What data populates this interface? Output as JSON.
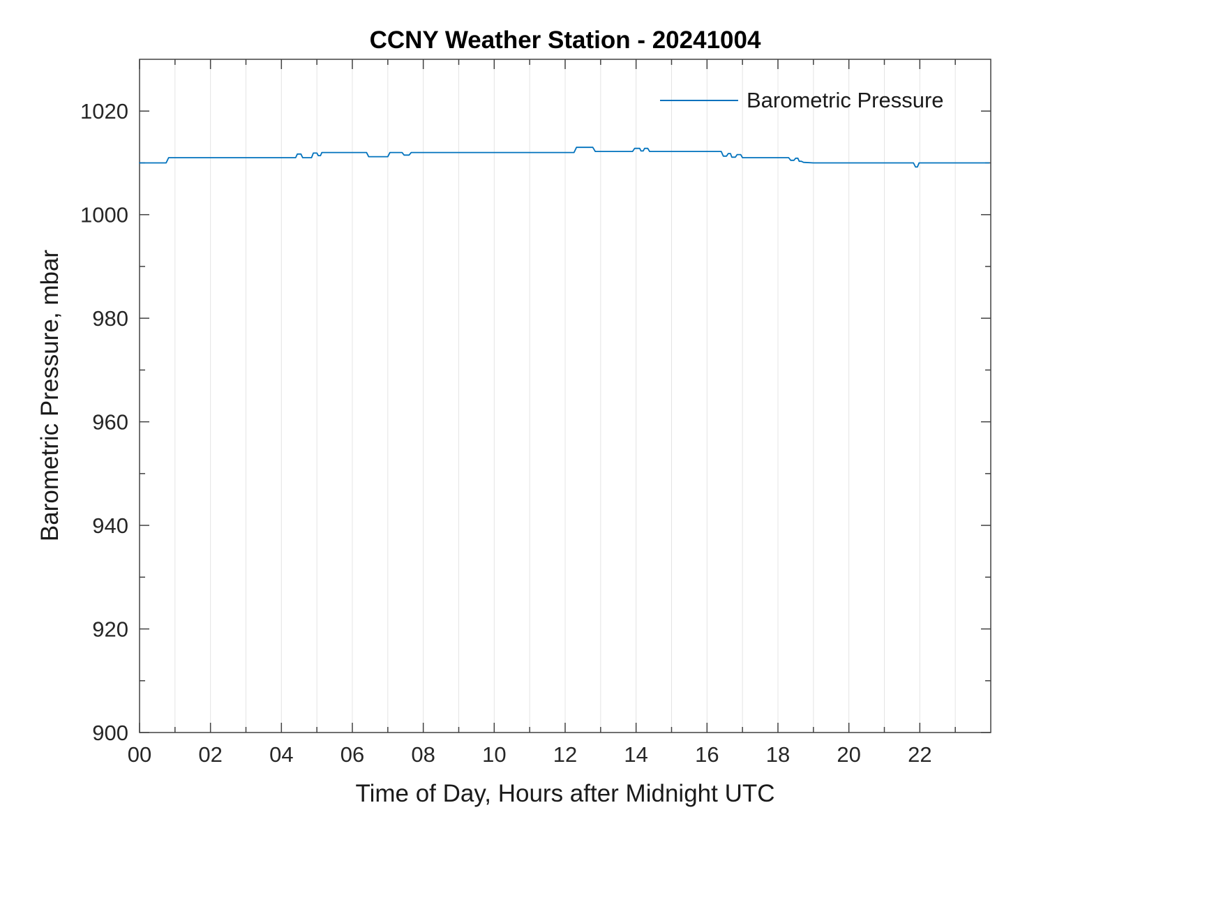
{
  "chart_data": {
    "type": "line",
    "title": "CCNY Weather Station - 20241004",
    "xlabel": "Time of Day, Hours after Midnight UTC",
    "ylabel": "Barometric Pressure, mbar",
    "xlim": [
      0,
      24
    ],
    "ylim": [
      900,
      1030
    ],
    "xticks": {
      "values": [
        0,
        2,
        4,
        6,
        8,
        10,
        12,
        14,
        16,
        18,
        20,
        22
      ],
      "labels": [
        "00",
        "02",
        "04",
        "06",
        "08",
        "10",
        "12",
        "14",
        "16",
        "18",
        "20",
        "22"
      ]
    },
    "xminor": [
      1,
      3,
      5,
      7,
      9,
      11,
      13,
      15,
      17,
      19,
      21,
      23
    ],
    "yticks": {
      "values": [
        900,
        920,
        940,
        960,
        980,
        1000,
        1020
      ],
      "labels": [
        "900",
        "920",
        "940",
        "960",
        "980",
        "1000",
        "1020"
      ]
    },
    "yminor": [
      910,
      930,
      950,
      970,
      990,
      1010
    ],
    "grid_x": [
      1,
      2,
      3,
      4,
      5,
      6,
      7,
      8,
      9,
      10,
      11,
      12,
      13,
      14,
      15,
      16,
      17,
      18,
      19,
      20,
      21,
      22,
      23
    ],
    "grid_color": "#e4e4e4",
    "axis_color": "#404040",
    "tick_label_color": "#262626",
    "legend": {
      "label": "Barometric Pressure",
      "position": "top-right"
    },
    "series": [
      {
        "name": "Barometric Pressure",
        "color": "#0072BD",
        "x": [
          0,
          0.75,
          0.82,
          4.4,
          4.45,
          4.55,
          4.6,
          4.85,
          4.9,
          5.0,
          5.04,
          5.1,
          5.14,
          6.4,
          6.46,
          7.0,
          7.06,
          7.4,
          7.46,
          7.6,
          7.66,
          12.25,
          12.32,
          12.78,
          12.85,
          13.9,
          13.96,
          14.1,
          14.14,
          14.2,
          14.24,
          14.33,
          14.38,
          16.4,
          16.46,
          16.55,
          16.6,
          16.66,
          16.7,
          16.8,
          16.85,
          16.95,
          17.0,
          18.3,
          18.36,
          18.45,
          18.5,
          18.56,
          18.6,
          18.66,
          18.72,
          19.0,
          21.82,
          21.88,
          21.93,
          21.98,
          23.95
        ],
        "y": [
          1010,
          1010,
          1011,
          1011,
          1011.7,
          1011.7,
          1011,
          1011,
          1011.9,
          1011.9,
          1011.4,
          1011.4,
          1012,
          1012,
          1011.2,
          1011.2,
          1012,
          1012,
          1011.5,
          1011.5,
          1012,
          1012,
          1013,
          1013,
          1012.2,
          1012.2,
          1012.8,
          1012.8,
          1012.3,
          1012.3,
          1012.8,
          1012.8,
          1012.2,
          1012.2,
          1011.3,
          1011.3,
          1011.8,
          1011.8,
          1011.1,
          1011.1,
          1011.6,
          1011.6,
          1011,
          1011,
          1010.5,
          1010.5,
          1010.9,
          1010.9,
          1010.3,
          1010.3,
          1010.1,
          1010,
          1010,
          1009.2,
          1009.2,
          1010,
          1010
        ]
      }
    ]
  }
}
